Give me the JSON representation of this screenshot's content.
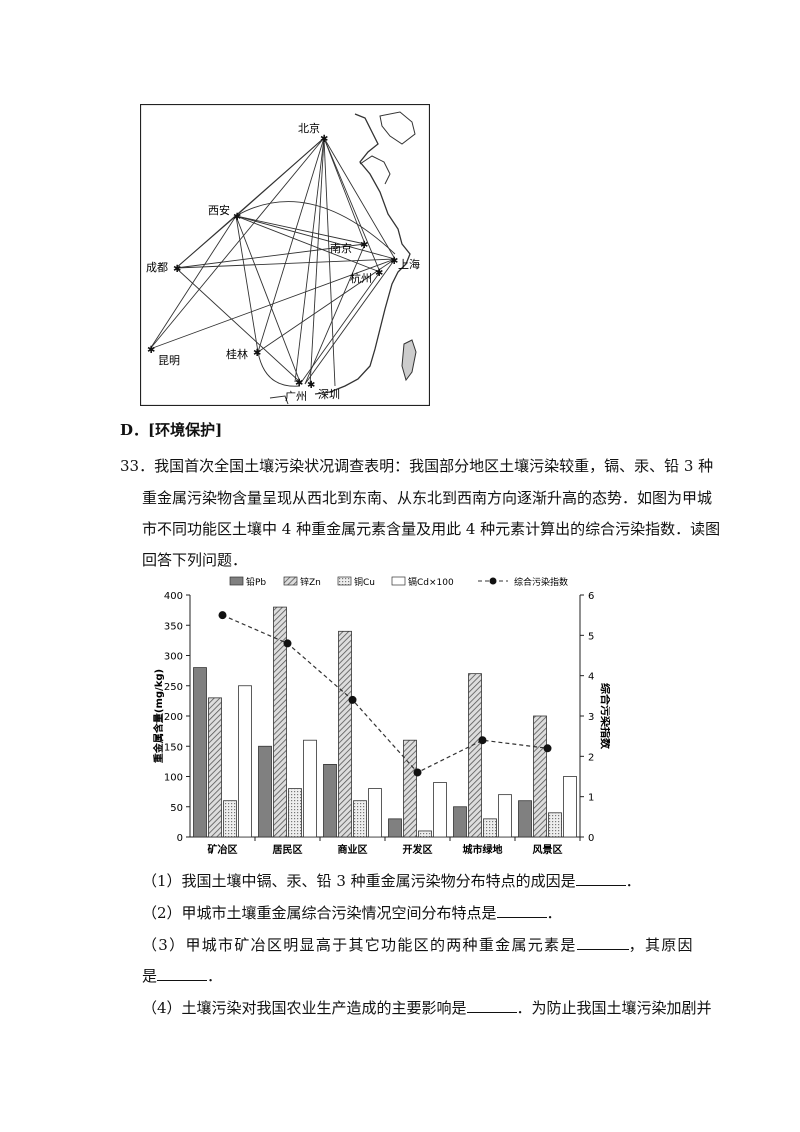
{
  "map": {
    "cities": {
      "beijing": "北京",
      "xian": "西安",
      "chengdu": "成都",
      "kunming": "昆明",
      "nanjing": "南京",
      "shanghai": "上海",
      "hangzhou": "杭州",
      "guilin": "桂林",
      "guangzhou": "广州",
      "shenzhen": "深圳"
    }
  },
  "section_heading": "D．[环境保护]",
  "question": {
    "number": "33．",
    "line1": "我国首次全国土壤污染状况调查表明：我国部分地区土壤污染较重，镉、汞、铅 3 种",
    "line2": "重金属污染物含量呈现从西北到东南、从东北到西南方向逐渐升高的态势．如图为甲城",
    "line3": "市不同功能区土壤中 4 种重金属元素含量及用此 4 种元素计算出的综合污染指数．读图",
    "line4": "回答下列问题．"
  },
  "chart_data": {
    "type": "bar",
    "categories": [
      "矿冶区",
      "居民区",
      "商业区",
      "开发区",
      "城市绿地",
      "风景区"
    ],
    "series": [
      {
        "name": "铅Pb",
        "values": [
          280,
          150,
          120,
          30,
          50,
          60
        ],
        "color": "#777777"
      },
      {
        "name": "锌Zn",
        "values": [
          230,
          380,
          340,
          160,
          270,
          200
        ],
        "color": "#aaaaaa"
      },
      {
        "name": "铜Cu",
        "values": [
          60,
          80,
          60,
          10,
          30,
          40
        ],
        "color": "#cccccc"
      },
      {
        "name": "镉Cd×100",
        "values": [
          250,
          160,
          80,
          90,
          70,
          100
        ],
        "color": "#ffffff"
      }
    ],
    "line_series": {
      "name": "综合污染指数",
      "values": [
        5.5,
        4.8,
        3.4,
        1.6,
        2.4,
        2.2
      ]
    },
    "ylabel": "重金属含量(mg/kg)",
    "y2label": "综合污染指数",
    "ylim": [
      0,
      400
    ],
    "y2lim": [
      0,
      6
    ],
    "yticks": [
      "0",
      "50",
      "100",
      "150",
      "200",
      "250",
      "300",
      "350",
      "400"
    ],
    "y2ticks": [
      "0",
      "1",
      "2",
      "3",
      "4",
      "5",
      "6"
    ],
    "legend": "top"
  },
  "sub_questions": {
    "q1": "（1）我国土壤中镉、汞、铅 3 种重金属污染物分布特点的成因是",
    "q1_end": "．",
    "q2": "（2）甲城市土壤重金属综合污染情况空间分布特点是",
    "q2_end": "．",
    "q3": "（3）甲城市矿冶区明显高于其它功能区的两种重金属元素是",
    "q3_mid": "，其原因",
    "q3_line2": "是",
    "q3_end": "．",
    "q4": "（4）土壤污染对我国农业生产造成的主要影响是",
    "q4_end": "．为防止我国土壤污染加剧并"
  }
}
